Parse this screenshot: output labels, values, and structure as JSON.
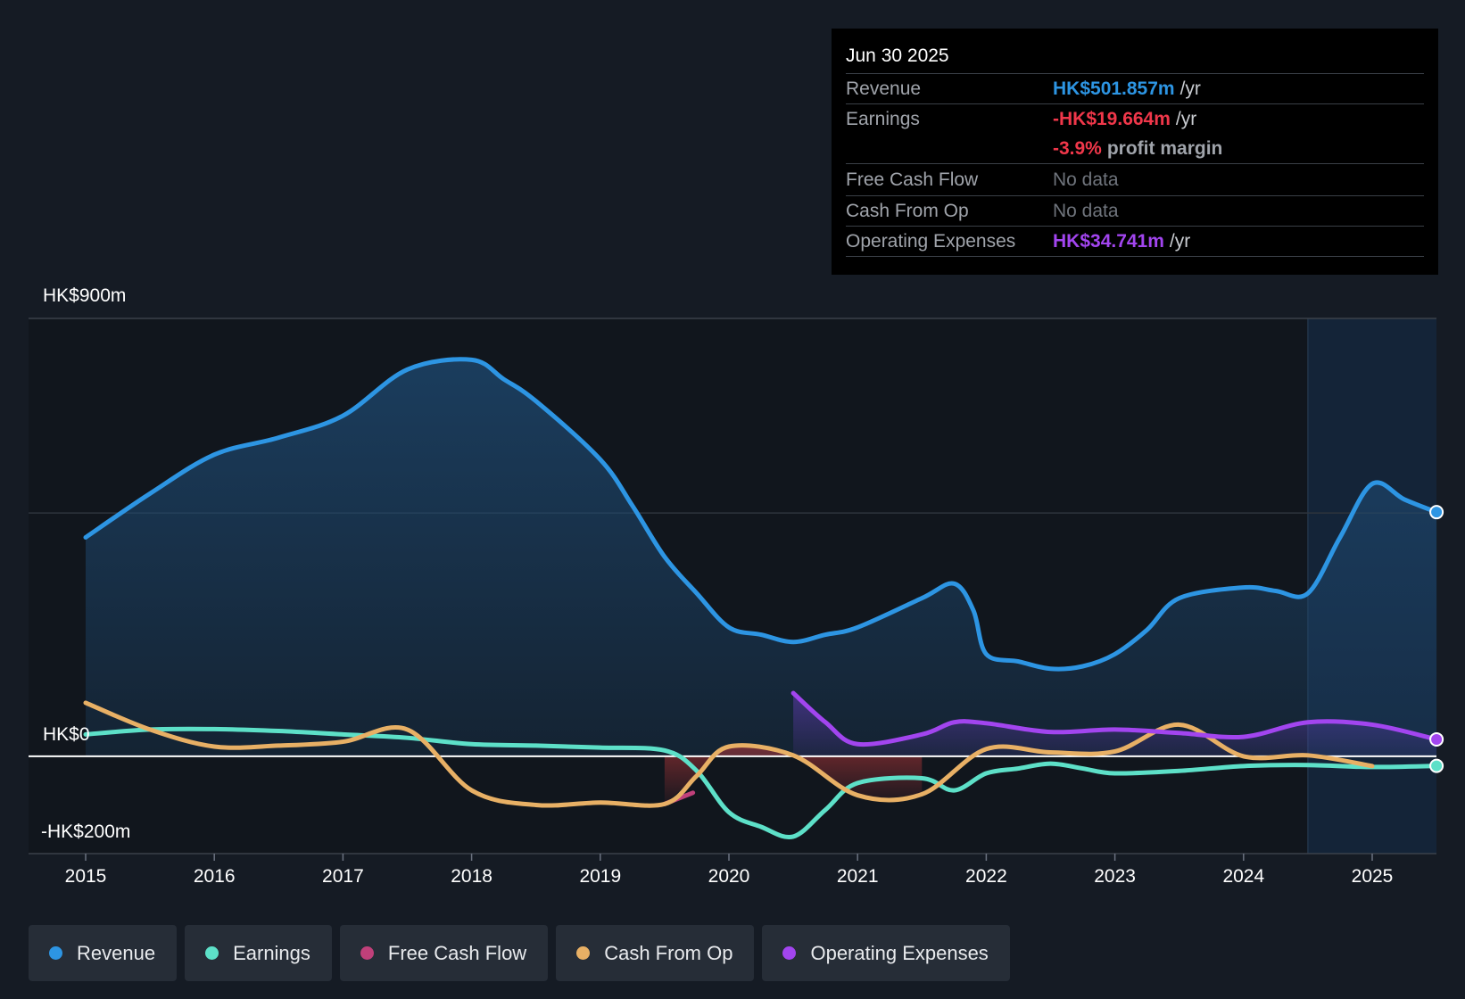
{
  "tooltip": {
    "date": "Jun 30 2025",
    "rows": {
      "revenue": {
        "label": "Revenue",
        "value": "HK$501.857m",
        "unit": "/yr"
      },
      "earnings": {
        "label": "Earnings",
        "value": "-HK$19.664m",
        "unit": "/yr"
      },
      "margin": {
        "value": "-3.9%",
        "unit": "profit margin"
      },
      "fcf": {
        "label": "Free Cash Flow",
        "value": "No data"
      },
      "cfo": {
        "label": "Cash From Op",
        "value": "No data"
      },
      "opex": {
        "label": "Operating Expenses",
        "value": "HK$34.741m",
        "unit": "/yr"
      }
    }
  },
  "legend": {
    "revenue": "Revenue",
    "earnings": "Earnings",
    "fcf": "Free Cash Flow",
    "cfo": "Cash From Op",
    "opex": "Operating Expenses"
  },
  "colors": {
    "revenue": "#2d95e3",
    "earnings": "#5de0c8",
    "fcf": "#c0407a",
    "cfo": "#e8b065",
    "opex": "#a245ef"
  },
  "chart_data": {
    "type": "line",
    "title": "",
    "xlabel": "",
    "ylabel": "",
    "y_tick_labels": {
      "top": "HK$900m",
      "zero": "HK$0",
      "bottom": "-HK$200m"
    },
    "ylim": [
      -200,
      900
    ],
    "xlim": [
      2015,
      2025.5
    ],
    "x_ticks": [
      "2015",
      "2016",
      "2017",
      "2018",
      "2019",
      "2020",
      "2021",
      "2022",
      "2023",
      "2024",
      "2025"
    ],
    "forecast_shade_start": 2024.5,
    "series": [
      {
        "name": "Revenue",
        "key": "revenue",
        "points": [
          [
            2015,
            450
          ],
          [
            2015.5,
            540
          ],
          [
            2016,
            620
          ],
          [
            2016.5,
            655
          ],
          [
            2017,
            700
          ],
          [
            2017.5,
            795
          ],
          [
            2018,
            815
          ],
          [
            2018.25,
            775
          ],
          [
            2018.5,
            730
          ],
          [
            2019,
            610
          ],
          [
            2019.25,
            515
          ],
          [
            2019.5,
            410
          ],
          [
            2019.75,
            335
          ],
          [
            2020,
            265
          ],
          [
            2020.25,
            250
          ],
          [
            2020.5,
            235
          ],
          [
            2020.75,
            250
          ],
          [
            2021,
            265
          ],
          [
            2021.5,
            325
          ],
          [
            2021.75,
            355
          ],
          [
            2021.9,
            300
          ],
          [
            2022,
            210
          ],
          [
            2022.25,
            195
          ],
          [
            2022.5,
            180
          ],
          [
            2022.75,
            185
          ],
          [
            2023,
            210
          ],
          [
            2023.25,
            260
          ],
          [
            2023.5,
            325
          ],
          [
            2024,
            347
          ],
          [
            2024.25,
            340
          ],
          [
            2024.5,
            335
          ],
          [
            2024.75,
            450
          ],
          [
            2025,
            560
          ],
          [
            2025.25,
            528
          ],
          [
            2025.5,
            501.857
          ]
        ]
      },
      {
        "name": "Earnings",
        "key": "earnings",
        "points": [
          [
            2015,
            45
          ],
          [
            2015.5,
            55
          ],
          [
            2016,
            56
          ],
          [
            2016.5,
            52
          ],
          [
            2017,
            45
          ],
          [
            2017.5,
            38
          ],
          [
            2018,
            25
          ],
          [
            2018.5,
            22
          ],
          [
            2019,
            18
          ],
          [
            2019.5,
            12
          ],
          [
            2019.75,
            -30
          ],
          [
            2020,
            -115
          ],
          [
            2020.25,
            -145
          ],
          [
            2020.5,
            -165
          ],
          [
            2020.75,
            -110
          ],
          [
            2021,
            -55
          ],
          [
            2021.5,
            -45
          ],
          [
            2021.75,
            -70
          ],
          [
            2022,
            -35
          ],
          [
            2022.25,
            -25
          ],
          [
            2022.5,
            -15
          ],
          [
            2022.75,
            -25
          ],
          [
            2023,
            -35
          ],
          [
            2023.5,
            -30
          ],
          [
            2024,
            -20
          ],
          [
            2024.5,
            -18
          ],
          [
            2025,
            -22
          ],
          [
            2025.5,
            -19.664
          ]
        ]
      },
      {
        "name": "Free Cash Flow",
        "key": "fcf",
        "points": [
          [
            2019.5,
            -98
          ],
          [
            2019.72,
            -75
          ]
        ]
      },
      {
        "name": "Cash From Op",
        "key": "cfo",
        "points": [
          [
            2015,
            110
          ],
          [
            2015.5,
            55
          ],
          [
            2016,
            20
          ],
          [
            2016.5,
            22
          ],
          [
            2017,
            30
          ],
          [
            2017.5,
            55
          ],
          [
            2018,
            -70
          ],
          [
            2018.5,
            -100
          ],
          [
            2019,
            -95
          ],
          [
            2019.5,
            -98
          ],
          [
            2019.75,
            -40
          ],
          [
            2020,
            20
          ],
          [
            2020.5,
            2
          ],
          [
            2021,
            -80
          ],
          [
            2021.5,
            -78
          ],
          [
            2022,
            15
          ],
          [
            2022.5,
            8
          ],
          [
            2023,
            10
          ],
          [
            2023.5,
            65
          ],
          [
            2024,
            0
          ],
          [
            2024.5,
            2
          ],
          [
            2025,
            -20
          ]
        ]
      },
      {
        "name": "Operating Expenses",
        "key": "opex",
        "points": [
          [
            2020.5,
            130
          ],
          [
            2020.75,
            70
          ],
          [
            2021,
            25
          ],
          [
            2021.5,
            45
          ],
          [
            2021.75,
            70
          ],
          [
            2022,
            68
          ],
          [
            2022.5,
            50
          ],
          [
            2023,
            55
          ],
          [
            2023.5,
            48
          ],
          [
            2024,
            40
          ],
          [
            2024.5,
            70
          ],
          [
            2025,
            65
          ],
          [
            2025.5,
            34.741
          ]
        ]
      }
    ]
  }
}
